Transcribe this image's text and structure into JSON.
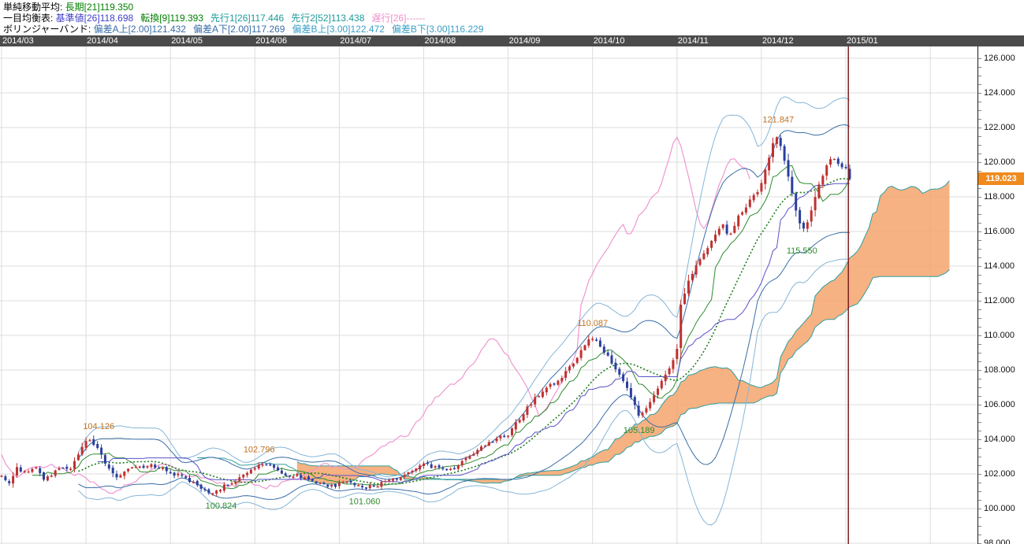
{
  "legend": {
    "rows": [
      {
        "name": "sma",
        "prefix": "単純移動平均: ",
        "items": [
          {
            "text": "長期[21]119.350",
            "color": "#008000"
          }
        ]
      },
      {
        "name": "ichimoku",
        "prefix": "一目均衡表: ",
        "items": [
          {
            "text": "基準値[26]118.698",
            "color": "#4040c8"
          },
          {
            "text": "転換[9]119.393",
            "color": "#008000"
          },
          {
            "text": "先行1[26]117.446",
            "color": "#1f9a9a"
          },
          {
            "text": "先行2[52]113.438",
            "color": "#1f9a9a"
          },
          {
            "text": "遅行[26]------",
            "color": "#ef8ecb"
          }
        ]
      },
      {
        "name": "bollinger",
        "prefix": "ボリンジャーバンド: ",
        "items": [
          {
            "text": "偏差A上[2.00]121.432",
            "color": "#3a6ea8"
          },
          {
            "text": "偏差A下[2.00]117.269",
            "color": "#3a6ea8"
          },
          {
            "text": "偏差B上[3.00]122.472",
            "color": "#3aa0c8"
          },
          {
            "text": "偏差B下[3.00]116.229",
            "color": "#3aa0c8"
          }
        ]
      }
    ]
  },
  "date_axis": {
    "labels": [
      {
        "text": "2014/03",
        "month": 0
      },
      {
        "text": "2014/04",
        "month": 1
      },
      {
        "text": "2014/05",
        "month": 2
      },
      {
        "text": "2014/06",
        "month": 3
      },
      {
        "text": "2014/07",
        "month": 4
      },
      {
        "text": "2014/08",
        "month": 5
      },
      {
        "text": "2014/09",
        "month": 6
      },
      {
        "text": "2014/10",
        "month": 7
      },
      {
        "text": "2014/11",
        "month": 8
      },
      {
        "text": "2014/12",
        "month": 9
      },
      {
        "text": "2015/01",
        "month": 10
      }
    ]
  },
  "price_axis": {
    "min": 98,
    "max": 126,
    "step": 2,
    "minor_step": 0.5,
    "decimals": 3,
    "current": "119.023",
    "badge_color": "#f08a1e"
  },
  "chart_data": {
    "type": "candlestick",
    "title": "",
    "xlabel": "",
    "ylabel": "",
    "x_range": {
      "start": "2014/03",
      "end": "2015/01",
      "bars_per_month": 22,
      "last_bar_month": 10.03
    },
    "y_range": {
      "min": 98,
      "max": 126,
      "gridline_step": 2
    },
    "last_close": 119.023,
    "close_path": [
      [
        0,
        101.9
      ],
      [
        0.1,
        101.4
      ],
      [
        0.18,
        102.3
      ],
      [
        0.3,
        102.1
      ],
      [
        0.4,
        102.4
      ],
      [
        0.5,
        101.7
      ],
      [
        0.6,
        102.0
      ],
      [
        0.7,
        102.3
      ],
      [
        0.8,
        102.2
      ],
      [
        0.9,
        103.1
      ],
      [
        1.0,
        103.8
      ],
      [
        1.05,
        104.0
      ],
      [
        1.15,
        103.3
      ],
      [
        1.25,
        102.4
      ],
      [
        1.35,
        101.8
      ],
      [
        1.45,
        102.1
      ],
      [
        1.55,
        102.5
      ],
      [
        1.65,
        102.3
      ],
      [
        1.75,
        102.6
      ],
      [
        1.85,
        102.3
      ],
      [
        1.95,
        102.2
      ],
      [
        2.05,
        102.0
      ],
      [
        2.15,
        101.8
      ],
      [
        2.3,
        101.4
      ],
      [
        2.45,
        101.0
      ],
      [
        2.52,
        100.9
      ],
      [
        2.65,
        101.4
      ],
      [
        2.8,
        101.7
      ],
      [
        2.9,
        102.0
      ],
      [
        3.0,
        102.4
      ],
      [
        3.1,
        102.6
      ],
      [
        3.2,
        102.4
      ],
      [
        3.35,
        102.0
      ],
      [
        3.5,
        101.9
      ],
      [
        3.65,
        101.7
      ],
      [
        3.8,
        101.4
      ],
      [
        3.95,
        101.3
      ],
      [
        4.1,
        101.6
      ],
      [
        4.25,
        101.2
      ],
      [
        4.4,
        101.3
      ],
      [
        4.55,
        101.5
      ],
      [
        4.7,
        101.8
      ],
      [
        4.85,
        102.2
      ],
      [
        5.0,
        102.7
      ],
      [
        5.1,
        102.4
      ],
      [
        5.25,
        102.2
      ],
      [
        5.4,
        102.5
      ],
      [
        5.55,
        103.1
      ],
      [
        5.7,
        103.6
      ],
      [
        5.85,
        104.0
      ],
      [
        6.0,
        104.3
      ],
      [
        6.15,
        105.3
      ],
      [
        6.3,
        106.3
      ],
      [
        6.45,
        107.0
      ],
      [
        6.6,
        107.4
      ],
      [
        6.75,
        108.3
      ],
      [
        6.9,
        109.4
      ],
      [
        7.0,
        109.9
      ],
      [
        7.08,
        109.5
      ],
      [
        7.2,
        108.6
      ],
      [
        7.35,
        107.6
      ],
      [
        7.45,
        106.5
      ],
      [
        7.55,
        105.4
      ],
      [
        7.65,
        105.9
      ],
      [
        7.75,
        106.8
      ],
      [
        7.85,
        107.5
      ],
      [
        7.95,
        108.6
      ],
      [
        8.0,
        109.3
      ],
      [
        8.05,
        111.9
      ],
      [
        8.15,
        113.3
      ],
      [
        8.3,
        114.6
      ],
      [
        8.45,
        115.8
      ],
      [
        8.55,
        116.5
      ],
      [
        8.62,
        115.6
      ],
      [
        8.72,
        116.8
      ],
      [
        8.85,
        117.7
      ],
      [
        8.95,
        118.2
      ],
      [
        9.0,
        118.7
      ],
      [
        9.05,
        119.6
      ],
      [
        9.15,
        121.3
      ],
      [
        9.2,
        121.5
      ],
      [
        9.3,
        119.6
      ],
      [
        9.4,
        117.5
      ],
      [
        9.48,
        115.9
      ],
      [
        9.55,
        116.6
      ],
      [
        9.65,
        118.3
      ],
      [
        9.75,
        119.6
      ],
      [
        9.85,
        120.4
      ],
      [
        9.92,
        119.9
      ],
      [
        10.0,
        119.6
      ],
      [
        10.03,
        119.02
      ]
    ],
    "indicators": {
      "sma_long": {
        "period": 21,
        "value": 119.35
      },
      "ichimoku": {
        "kijun": {
          "period": 26,
          "value": 118.698
        },
        "tenkan": {
          "period": 9,
          "value": 119.393
        },
        "senkou1": {
          "period": 26,
          "value": 117.446
        },
        "senkou2": {
          "period": 52,
          "value": 113.438
        },
        "chikou": {
          "period": 26,
          "value": "------"
        }
      },
      "bollinger": {
        "a_upper": {
          "dev": 2.0,
          "value": 121.432
        },
        "a_lower": {
          "dev": 2.0,
          "value": 117.269
        },
        "b_upper": {
          "dev": 3.0,
          "value": 122.472
        },
        "b_lower": {
          "dev": 3.0,
          "value": 116.229
        }
      }
    },
    "annotations": [
      {
        "label": "104.126",
        "month": 1.15,
        "price": 104.13,
        "type": "high"
      },
      {
        "label": "102.796",
        "month": 3.05,
        "price": 102.8,
        "type": "high"
      },
      {
        "label": "100.824",
        "month": 2.6,
        "price": 100.82,
        "type": "low"
      },
      {
        "label": "101.060",
        "month": 4.3,
        "price": 101.06,
        "type": "low"
      },
      {
        "label": "110.087",
        "month": 7.0,
        "price": 110.09,
        "type": "high"
      },
      {
        "label": "105.189",
        "month": 7.55,
        "price": 105.19,
        "type": "low"
      },
      {
        "label": "121.847",
        "month": 9.2,
        "price": 121.85,
        "type": "high"
      },
      {
        "label": "115.550",
        "month": 9.48,
        "price": 115.55,
        "type": "low"
      }
    ],
    "current_marker_month": 10.03,
    "colors": {
      "candle_up": "#c03030",
      "candle_down": "#2b3f9e",
      "sma_long": "#1e7d1e",
      "tenkan": "#2e8b2e",
      "kijun": "#5a52c8",
      "senkou": "#2f9e9e",
      "cloud": "#f4a46c",
      "chikou": "#ef97cf",
      "bollinger_a": "#3a6ea8",
      "bollinger_b": "#85b6d8",
      "grid": "#dcdcdc",
      "current_line": "#7a2020",
      "annotation_high": "#c07020",
      "annotation_low": "#2e8b2e"
    }
  }
}
